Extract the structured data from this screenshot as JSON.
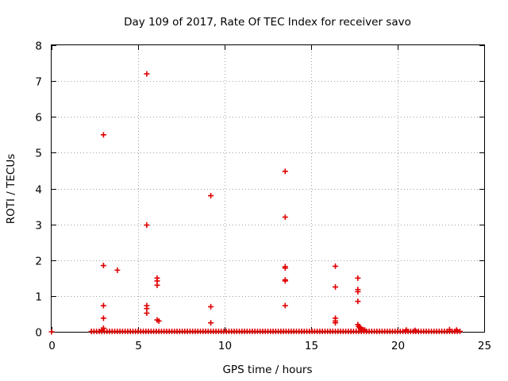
{
  "chart_data": {
    "type": "scatter",
    "title": "Day 109 of 2017, Rate Of TEC Index for receiver savo",
    "xlabel": "GPS time / hours",
    "ylabel": "ROTI / TECUs",
    "xlim": [
      0,
      25
    ],
    "ylim": [
      0,
      8
    ],
    "xticks": [
      0,
      5,
      10,
      15,
      20,
      25
    ],
    "yticks": [
      0,
      1,
      2,
      3,
      4,
      5,
      6,
      7,
      8
    ],
    "grid": true,
    "marker": "plus",
    "color": "#e00000",
    "series": [
      {
        "points": [
          [
            0.0,
            0.0
          ],
          [
            3.0,
            5.5
          ],
          [
            3.0,
            1.85
          ],
          [
            3.0,
            0.73
          ],
          [
            3.0,
            0.38
          ],
          [
            3.0,
            0.1
          ],
          [
            2.9,
            0.05
          ],
          [
            3.8,
            1.72
          ],
          [
            5.5,
            7.2
          ],
          [
            5.5,
            2.98
          ],
          [
            5.5,
            0.73
          ],
          [
            5.5,
            0.65
          ],
          [
            5.5,
            0.52
          ],
          [
            6.1,
            1.5
          ],
          [
            6.1,
            1.42
          ],
          [
            6.1,
            1.3
          ],
          [
            6.1,
            0.33
          ],
          [
            6.2,
            0.3
          ],
          [
            9.2,
            3.8
          ],
          [
            9.2,
            0.7
          ],
          [
            9.2,
            0.25
          ],
          [
            13.5,
            4.48
          ],
          [
            13.5,
            3.2
          ],
          [
            13.5,
            1.82
          ],
          [
            13.5,
            1.78
          ],
          [
            13.5,
            1.45
          ],
          [
            13.5,
            1.42
          ],
          [
            13.5,
            0.73
          ],
          [
            16.4,
            1.83
          ],
          [
            16.4,
            1.25
          ],
          [
            16.4,
            0.38
          ],
          [
            16.4,
            0.3
          ],
          [
            16.4,
            0.25
          ],
          [
            17.7,
            1.5
          ],
          [
            17.7,
            1.18
          ],
          [
            17.7,
            1.12
          ],
          [
            17.7,
            0.85
          ],
          [
            17.7,
            0.2
          ],
          [
            17.75,
            0.15
          ],
          [
            17.8,
            0.12
          ],
          [
            17.85,
            0.1
          ],
          [
            17.9,
            0.08
          ],
          [
            18.0,
            0.06
          ],
          [
            18.1,
            0.05
          ],
          [
            20.5,
            0.05
          ],
          [
            21.0,
            0.04
          ],
          [
            23.0,
            0.06
          ],
          [
            23.4,
            0.05
          ]
        ]
      }
    ],
    "baseline": {
      "x_start": 2.3,
      "x_end": 23.6,
      "step": 0.15,
      "y": 0.01
    }
  }
}
